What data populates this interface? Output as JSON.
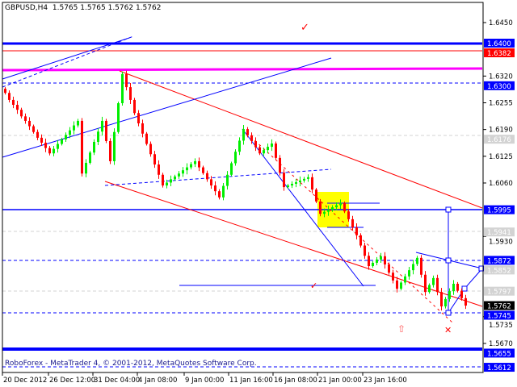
{
  "header": {
    "symbol_line": "GBPUSD,H4  1.5765 1.5765 1.5762 1.5762"
  },
  "footer": {
    "copyright": "RoboForex - MetaTrader 4, © 2001-2012, MetaQuotes Software Corp."
  },
  "chart_data": {
    "type": "candlestick",
    "symbol": "GBPUSD",
    "timeframe": "H4",
    "last_quote": {
      "open": 1.5765,
      "high": 1.5765,
      "low": 1.5762,
      "close": 1.5762
    },
    "ylim": [
      1.5585,
      1.65
    ],
    "y_ticks": [
      "1.6450",
      "1.6320",
      "1.6255",
      "1.6190",
      "1.6125",
      "1.6060",
      "1.5930",
      "1.5735",
      "1.5670"
    ],
    "x_ticks": [
      "20 Dec 2012",
      "26 Dec 12:00",
      "31 Dec 04:00",
      "4 Jan 08:00",
      "9 Jan 00:00",
      "11 Jan 16:00",
      "16 Jan 08:00",
      "21 Jan 00:00",
      "23 Jan 16:00"
    ],
    "price_levels": [
      {
        "label": "1.6400",
        "bg": "#0000ff",
        "fg": "#ffffff"
      },
      {
        "label": "1.6382",
        "bg": "#ff0000",
        "fg": "#ffffff"
      },
      {
        "label": "1.6300",
        "bg": "#0000ff",
        "fg": "#ffffff"
      },
      {
        "label": "1.6176",
        "bg": "#d3d3d3",
        "fg": "#ffffff"
      },
      {
        "label": "1.5995",
        "bg": "#0000ff",
        "fg": "#ffffff"
      },
      {
        "label": "1.5941",
        "bg": "#d3d3d3",
        "fg": "#ffffff"
      },
      {
        "label": "1.5872",
        "bg": "#0000ff",
        "fg": "#ffffff"
      },
      {
        "label": "1.5852",
        "bg": "#d3d3d3",
        "fg": "#ffffff"
      },
      {
        "label": "1.5797",
        "bg": "#d3d3d3",
        "fg": "#ffffff"
      },
      {
        "label": "1.5762",
        "bg": "#000000",
        "fg": "#ffffff"
      },
      {
        "label": "1.5745",
        "bg": "#0000ff",
        "fg": "#ffffff"
      },
      {
        "label": "1.5655",
        "bg": "#0000ff",
        "fg": "#ffffff"
      },
      {
        "label": "1.5612",
        "bg": "#0000ff",
        "fg": "#ffffff"
      }
    ],
    "colors": {
      "bull": "#00ee00",
      "bear": "#ff0000",
      "levels": "#0000ff",
      "resistance": "#ff00ff",
      "channel": "#ff0000",
      "zone": "#ffff00"
    },
    "closes": [
      1.6279,
      1.6262,
      1.625,
      1.6238,
      1.6222,
      1.6211,
      1.6198,
      1.6184,
      1.617,
      1.6158,
      1.6145,
      1.6132,
      1.6143,
      1.6155,
      1.6166,
      1.6177,
      1.6188,
      1.62,
      1.6211,
      1.6083,
      1.6109,
      1.6134,
      1.616,
      1.6185,
      1.6211,
      1.6162,
      1.6113,
      1.6184,
      1.6254,
      1.6325,
      1.6293,
      1.6262,
      1.623,
      1.6205,
      1.618,
      1.6155,
      1.613,
      1.6105,
      1.608,
      1.6054,
      1.6061,
      1.6069,
      1.6076,
      1.6083,
      1.6091,
      1.6098,
      1.6106,
      1.6113,
      1.6098,
      1.6084,
      1.6069,
      1.6054,
      1.604,
      1.6025,
      1.6053,
      1.608,
      1.6108,
      1.6136,
      1.6163,
      1.6191,
      1.6176,
      1.6162,
      1.6147,
      1.6132,
      1.614,
      1.6148,
      1.6156,
      1.6121,
      1.6085,
      1.605,
      1.6054,
      1.6058,
      1.6062,
      1.6066,
      1.607,
      1.6074,
      1.6044,
      1.6015,
      1.5985,
      1.599,
      1.5995,
      1.6001,
      1.6006,
      1.6011,
      1.5991,
      1.5972,
      1.5952,
      1.5933,
      1.5908,
      1.5883,
      1.5858,
      1.5866,
      1.5874,
      1.5882,
      1.5862,
      1.5842,
      1.5823,
      1.5803,
      1.5818,
      1.5833,
      1.5848,
      1.5863,
      1.5878,
      1.5837,
      1.5795,
      1.5812,
      1.5829,
      1.5795,
      1.576,
      1.5778,
      1.5797,
      1.5815,
      1.5798,
      1.578,
      1.5762
    ]
  }
}
